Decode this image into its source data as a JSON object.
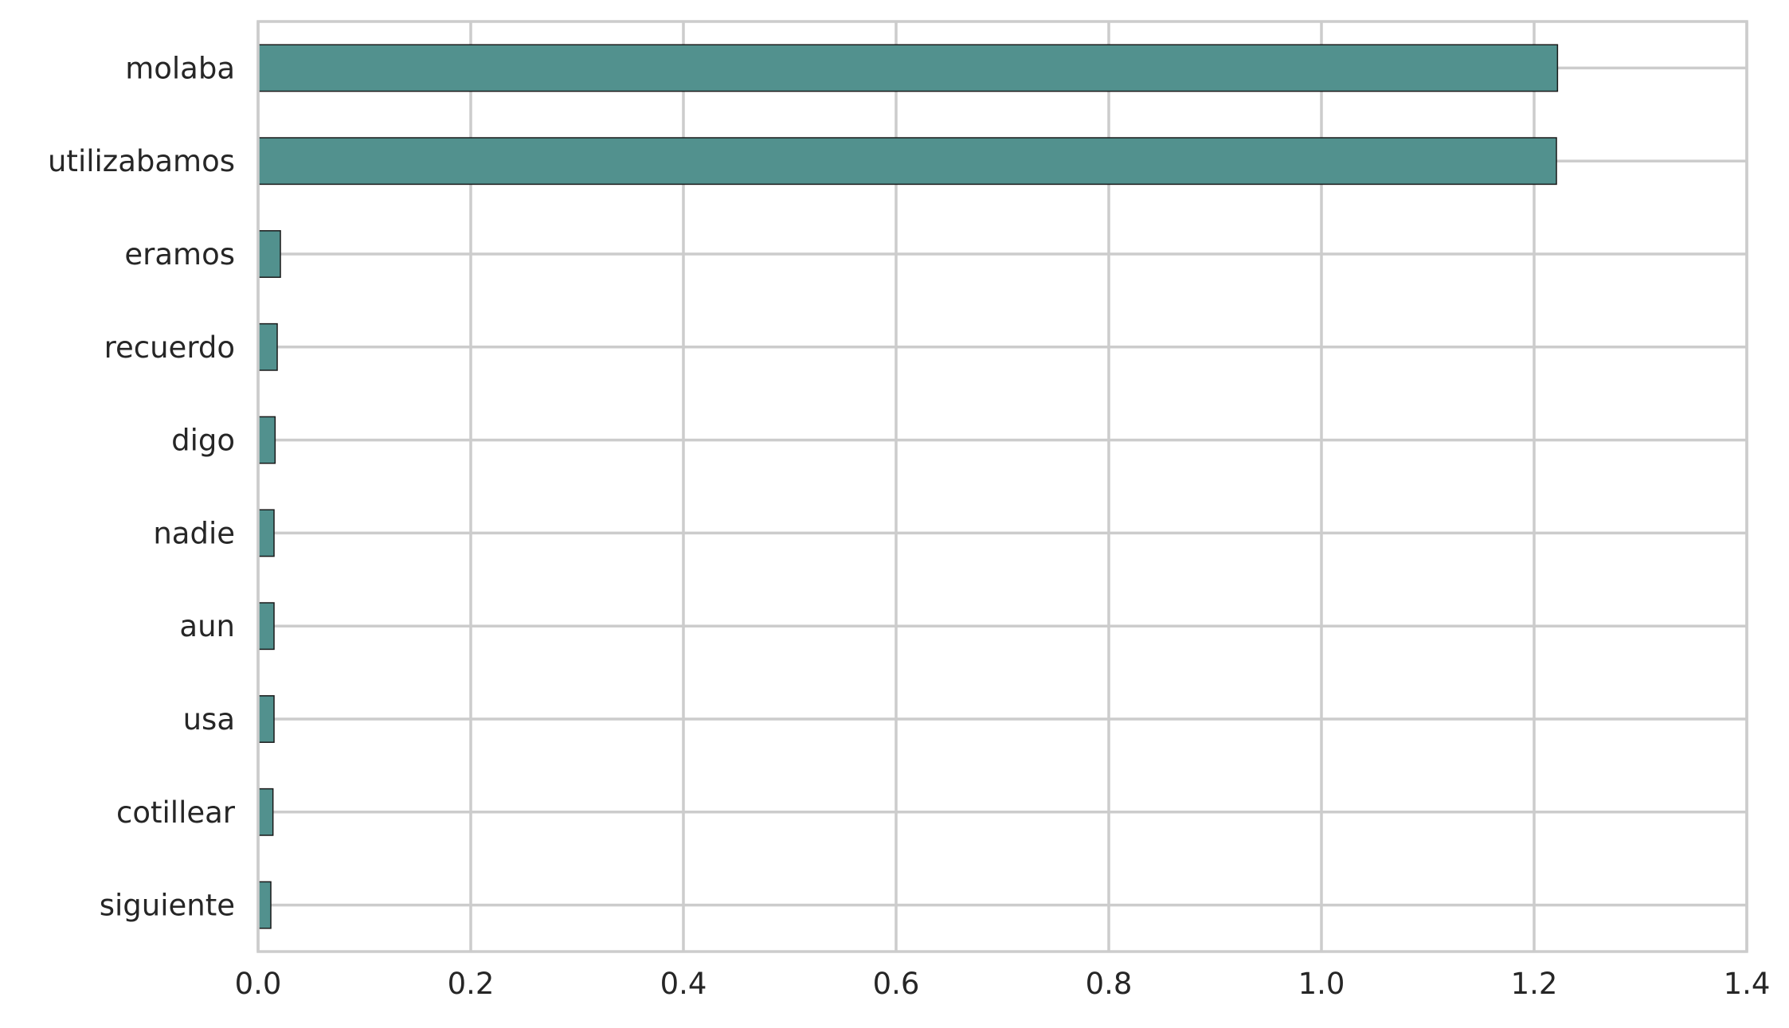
{
  "chart_data": {
    "type": "bar",
    "orientation": "horizontal",
    "title": "",
    "xlabel": "",
    "ylabel": "",
    "categories": [
      "molaba",
      "utilizabamos",
      "eramos",
      "recuerdo",
      "digo",
      "nadie",
      "aun",
      "usa",
      "cotillear",
      "siguiente"
    ],
    "values": [
      1.222,
      1.221,
      0.021,
      0.018,
      0.016,
      0.015,
      0.015,
      0.015,
      0.014,
      0.012
    ],
    "xlim": [
      0.0,
      1.4
    ],
    "xticks": [
      "0.0",
      "0.2",
      "0.4",
      "0.6",
      "0.8",
      "1.0",
      "1.2",
      "1.4"
    ],
    "grid": true,
    "legend": "none",
    "bar_color": "#52918e",
    "edge_color": "#1a1a1a",
    "grid_color": "#cccccc",
    "text_color": "#262626"
  }
}
